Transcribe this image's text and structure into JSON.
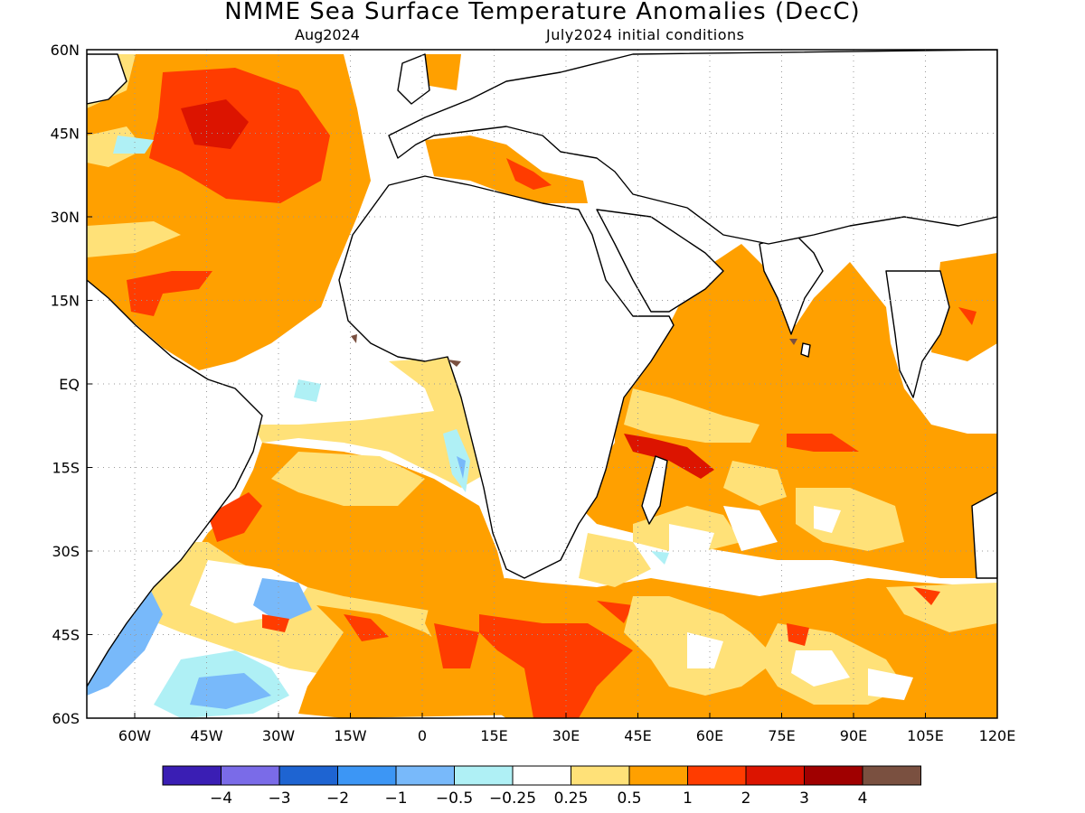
{
  "title": "NMME Sea Surface Temperature Anomalies (DecC)",
  "subtitle_left": "Aug2024",
  "subtitle_right": "July2024 initial conditions",
  "map": {
    "lon_range": [
      -70,
      120
    ],
    "lat_range": [
      -60,
      60
    ],
    "lat_labels": [
      "60N",
      "45N",
      "30N",
      "15N",
      "EQ",
      "15S",
      "30S",
      "45S",
      "60S"
    ],
    "lat_values": [
      60,
      45,
      30,
      15,
      0,
      -15,
      -30,
      -45,
      -60
    ],
    "lon_labels": [
      "60W",
      "45W",
      "30W",
      "15W",
      "0",
      "15E",
      "30E",
      "45E",
      "60E",
      "75E",
      "90E",
      "105E",
      "120E"
    ],
    "lon_values": [
      -60,
      -45,
      -30,
      -15,
      0,
      15,
      30,
      45,
      60,
      75,
      90,
      105,
      120
    ],
    "gridlines": "dotted",
    "projection": "equirectangular"
  },
  "colorbar": {
    "colors": [
      "#3a1eb4",
      "#7a6be8",
      "#1e64d2",
      "#3c96f5",
      "#78b9fa",
      "#aff0f5",
      "#ffffff",
      "#ffe178",
      "#ffa000",
      "#ff3c00",
      "#dc1400",
      "#a00000",
      "#7a5040"
    ],
    "labels": [
      "−4",
      "−3",
      "−2",
      "−1",
      "−0.5",
      "−0.25",
      "0.25",
      "0.5",
      "1",
      "2",
      "3",
      "4"
    ]
  }
}
